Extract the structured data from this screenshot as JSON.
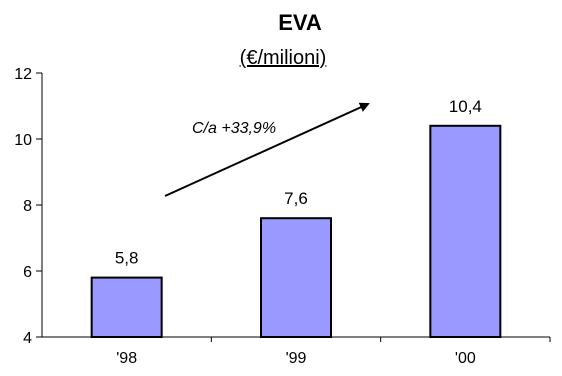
{
  "chart_data": {
    "type": "bar",
    "title": "EVA",
    "subtitle": "(€/milioni)",
    "categories": [
      "'98",
      "'99",
      "'00"
    ],
    "values": [
      5.8,
      7.6,
      10.4
    ],
    "value_labels": [
      "5,8",
      "7,6",
      "10,4"
    ],
    "ylim": [
      4,
      12
    ],
    "yticks": [
      4,
      6,
      8,
      10,
      12
    ],
    "grid": false,
    "bar_color": "#9999ff",
    "annotation": {
      "text": "C/a +33,9%",
      "arrow": true
    }
  }
}
